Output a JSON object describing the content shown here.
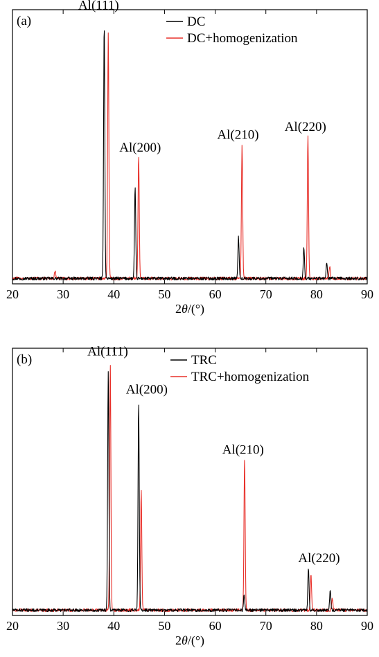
{
  "chart_data": [
    {
      "type": "line",
      "panel_label": "(a)",
      "xlabel_prefix": "2",
      "xlabel_symbol": "θ",
      "xlabel_suffix": "/(°)",
      "xlim": [
        20,
        90
      ],
      "xticks": [
        20,
        30,
        40,
        50,
        60,
        70,
        80,
        90
      ],
      "ylim": [
        0,
        1
      ],
      "grid": false,
      "legend_position": "top-right",
      "series": [
        {
          "name": "DC",
          "color": "#000000",
          "peaks": [
            {
              "x": 38.1,
              "y": 0.99
            },
            {
              "x": 44.2,
              "y": 0.35
            },
            {
              "x": 64.6,
              "y": 0.16
            },
            {
              "x": 77.5,
              "y": 0.12
            },
            {
              "x": 82.0,
              "y": 0.06
            }
          ]
        },
        {
          "name": "DC+homogenization",
          "color": "#e8302a",
          "peaks": [
            {
              "x": 38.9,
              "y": 0.95
            },
            {
              "x": 44.9,
              "y": 0.48
            },
            {
              "x": 65.3,
              "y": 0.52
            },
            {
              "x": 78.3,
              "y": 0.55
            },
            {
              "x": 82.6,
              "y": 0.05
            },
            {
              "x": 28.4,
              "y": 0.03
            }
          ]
        }
      ],
      "annotations": [
        {
          "text": "Al(111)",
          "x": 37.0,
          "y": 1.05
        },
        {
          "text": "Al(200)",
          "x": 45.2,
          "y": 0.5
        },
        {
          "text": "Al(210)",
          "x": 64.5,
          "y": 0.55
        },
        {
          "text": "Al(220)",
          "x": 77.8,
          "y": 0.58
        }
      ]
    },
    {
      "type": "line",
      "panel_label": "(b)",
      "xlabel_prefix": "2",
      "xlabel_symbol": "θ",
      "xlabel_suffix": "/(°)",
      "xlim": [
        20,
        90
      ],
      "xticks": [
        20,
        30,
        40,
        50,
        60,
        70,
        80,
        90
      ],
      "ylim": [
        0,
        1
      ],
      "grid": false,
      "legend_position": "top-right",
      "series": [
        {
          "name": "TRC",
          "color": "#000000",
          "peaks": [
            {
              "x": 38.9,
              "y": 0.95
            },
            {
              "x": 44.9,
              "y": 0.83
            },
            {
              "x": 65.7,
              "y": 0.06
            },
            {
              "x": 78.4,
              "y": 0.17
            },
            {
              "x": 82.7,
              "y": 0.08
            }
          ]
        },
        {
          "name": "TRC+homogenization",
          "color": "#e8302a",
          "peaks": [
            {
              "x": 39.3,
              "y": 0.99
            },
            {
              "x": 45.4,
              "y": 0.48
            },
            {
              "x": 65.8,
              "y": 0.6
            },
            {
              "x": 78.9,
              "y": 0.14
            },
            {
              "x": 83.1,
              "y": 0.05
            }
          ]
        }
      ],
      "annotations": [
        {
          "text": "Al(111)",
          "x": 38.8,
          "y": 1.02
        },
        {
          "text": "Al(200)",
          "x": 46.5,
          "y": 0.87
        },
        {
          "text": "Al(210)",
          "x": 65.5,
          "y": 0.63
        },
        {
          "text": "Al(220)",
          "x": 80.5,
          "y": 0.2
        }
      ]
    }
  ]
}
